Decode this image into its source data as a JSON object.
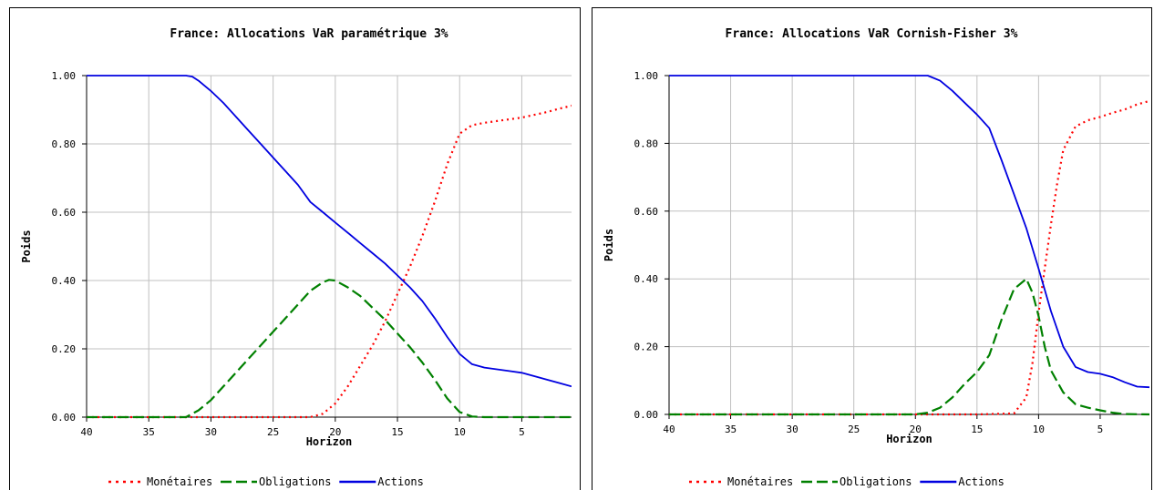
{
  "chart_data": [
    {
      "type": "line",
      "title": "France: Allocations VaR paramétrique 3%",
      "xlabel": "Horizon",
      "ylabel": "Poids",
      "xlim": [
        40,
        1
      ],
      "ylim": [
        0,
        1
      ],
      "xticks": [
        "40",
        "35",
        "30",
        "25",
        "20",
        "15",
        "10",
        "5"
      ],
      "yticks": [
        "0.00",
        "0.20",
        "0.40",
        "0.60",
        "0.80",
        "1.00"
      ],
      "grid": true,
      "legend_position": "bottom",
      "series": [
        {
          "name": "Monétaires",
          "color": "#ff0000",
          "style": "dotted",
          "points": [
            [
              40,
              0
            ],
            [
              35,
              0
            ],
            [
              30,
              0
            ],
            [
              25,
              0
            ],
            [
              22,
              0
            ],
            [
              21,
              0.01
            ],
            [
              20,
              0.04
            ],
            [
              19,
              0.09
            ],
            [
              18,
              0.15
            ],
            [
              17,
              0.21
            ],
            [
              16,
              0.28
            ],
            [
              15,
              0.36
            ],
            [
              14,
              0.44
            ],
            [
              13,
              0.53
            ],
            [
              12,
              0.63
            ],
            [
              11,
              0.74
            ],
            [
              10,
              0.83
            ],
            [
              9,
              0.855
            ],
            [
              8,
              0.862
            ],
            [
              7,
              0.867
            ],
            [
              6,
              0.872
            ],
            [
              5,
              0.877
            ],
            [
              4,
              0.885
            ],
            [
              3,
              0.893
            ],
            [
              2,
              0.903
            ],
            [
              1,
              0.912
            ]
          ]
        },
        {
          "name": "Obligations",
          "color": "#008000",
          "style": "dashed",
          "points": [
            [
              40,
              0
            ],
            [
              35,
              0
            ],
            [
              32,
              0
            ],
            [
              31,
              0.02
            ],
            [
              30,
              0.05
            ],
            [
              29,
              0.09
            ],
            [
              28,
              0.13
            ],
            [
              27,
              0.17
            ],
            [
              26,
              0.21
            ],
            [
              25,
              0.25
            ],
            [
              24,
              0.29
            ],
            [
              23,
              0.33
            ],
            [
              22,
              0.37
            ],
            [
              21,
              0.395
            ],
            [
              20.5,
              0.402
            ],
            [
              20,
              0.4
            ],
            [
              19,
              0.38
            ],
            [
              18,
              0.355
            ],
            [
              17,
              0.32
            ],
            [
              16,
              0.285
            ],
            [
              15,
              0.245
            ],
            [
              14,
              0.205
            ],
            [
              13,
              0.16
            ],
            [
              12,
              0.11
            ],
            [
              11,
              0.055
            ],
            [
              10,
              0.015
            ],
            [
              9,
              0.002
            ],
            [
              8,
              0
            ],
            [
              5,
              0
            ],
            [
              1,
              0
            ]
          ]
        },
        {
          "name": "Actions",
          "color": "#0000e0",
          "style": "solid",
          "points": [
            [
              40,
              1
            ],
            [
              35,
              1
            ],
            [
              32,
              1
            ],
            [
              31.5,
              0.997
            ],
            [
              31,
              0.985
            ],
            [
              30,
              0.955
            ],
            [
              29,
              0.92
            ],
            [
              28,
              0.88
            ],
            [
              27,
              0.84
            ],
            [
              26,
              0.8
            ],
            [
              25,
              0.76
            ],
            [
              24,
              0.72
            ],
            [
              23,
              0.68
            ],
            [
              22,
              0.63
            ],
            [
              21,
              0.6
            ],
            [
              20,
              0.57
            ],
            [
              19,
              0.54
            ],
            [
              18,
              0.51
            ],
            [
              17,
              0.48
            ],
            [
              16,
              0.45
            ],
            [
              15,
              0.415
            ],
            [
              14,
              0.38
            ],
            [
              13,
              0.34
            ],
            [
              12,
              0.29
            ],
            [
              11,
              0.235
            ],
            [
              10,
              0.185
            ],
            [
              9,
              0.155
            ],
            [
              8,
              0.145
            ],
            [
              7,
              0.14
            ],
            [
              6,
              0.135
            ],
            [
              5,
              0.13
            ],
            [
              4,
              0.12
            ],
            [
              3,
              0.11
            ],
            [
              2,
              0.1
            ],
            [
              1,
              0.09
            ]
          ]
        }
      ]
    },
    {
      "type": "line",
      "title": "France: Allocations VaR Cornish-Fisher 3%",
      "xlabel": "Horizon",
      "ylabel": "Poids",
      "xlim": [
        40,
        1
      ],
      "ylim": [
        0,
        1
      ],
      "xticks": [
        "40",
        "35",
        "30",
        "25",
        "20",
        "15",
        "10",
        "5"
      ],
      "yticks": [
        "0.00",
        "0.20",
        "0.40",
        "0.60",
        "0.80",
        "1.00"
      ],
      "grid": true,
      "legend_position": "bottom",
      "series": [
        {
          "name": "Monétaires",
          "color": "#ff0000",
          "style": "dotted",
          "points": [
            [
              40,
              0
            ],
            [
              35,
              0
            ],
            [
              30,
              0
            ],
            [
              25,
              0
            ],
            [
              20,
              0
            ],
            [
              15,
              0
            ],
            [
              12,
              0.003
            ],
            [
              11,
              0.05
            ],
            [
              10.5,
              0.15
            ],
            [
              10,
              0.3
            ],
            [
              9.5,
              0.43
            ],
            [
              9,
              0.56
            ],
            [
              8.5,
              0.68
            ],
            [
              8,
              0.78
            ],
            [
              7,
              0.85
            ],
            [
              6,
              0.868
            ],
            [
              5,
              0.878
            ],
            [
              4,
              0.89
            ],
            [
              3,
              0.9
            ],
            [
              2,
              0.915
            ],
            [
              1,
              0.925
            ]
          ]
        },
        {
          "name": "Obligations",
          "color": "#008000",
          "style": "dashed",
          "points": [
            [
              40,
              0
            ],
            [
              35,
              0
            ],
            [
              30,
              0
            ],
            [
              25,
              0
            ],
            [
              20,
              0
            ],
            [
              19,
              0.005
            ],
            [
              18,
              0.02
            ],
            [
              17,
              0.05
            ],
            [
              16,
              0.09
            ],
            [
              15,
              0.125
            ],
            [
              14,
              0.175
            ],
            [
              13,
              0.28
            ],
            [
              12,
              0.37
            ],
            [
              11,
              0.4
            ],
            [
              10.5,
              0.36
            ],
            [
              10,
              0.29
            ],
            [
              9.5,
              0.2
            ],
            [
              9,
              0.13
            ],
            [
              8,
              0.065
            ],
            [
              7,
              0.03
            ],
            [
              6,
              0.02
            ],
            [
              5,
              0.012
            ],
            [
              4,
              0.005
            ],
            [
              3,
              0.001
            ],
            [
              1,
              0
            ]
          ]
        },
        {
          "name": "Actions",
          "color": "#0000e0",
          "style": "solid",
          "points": [
            [
              40,
              1
            ],
            [
              35,
              1
            ],
            [
              30,
              1
            ],
            [
              25,
              1
            ],
            [
              20,
              1
            ],
            [
              19,
              1
            ],
            [
              18,
              0.985
            ],
            [
              17,
              0.955
            ],
            [
              16,
              0.92
            ],
            [
              15,
              0.885
            ],
            [
              14,
              0.845
            ],
            [
              13,
              0.75
            ],
            [
              12,
              0.65
            ],
            [
              11,
              0.55
            ],
            [
              10,
              0.43
            ],
            [
              9,
              0.305
            ],
            [
              8,
              0.2
            ],
            [
              7,
              0.14
            ],
            [
              6,
              0.125
            ],
            [
              5,
              0.12
            ],
            [
              4,
              0.11
            ],
            [
              3,
              0.095
            ],
            [
              2,
              0.082
            ],
            [
              1,
              0.08
            ]
          ]
        }
      ]
    }
  ]
}
